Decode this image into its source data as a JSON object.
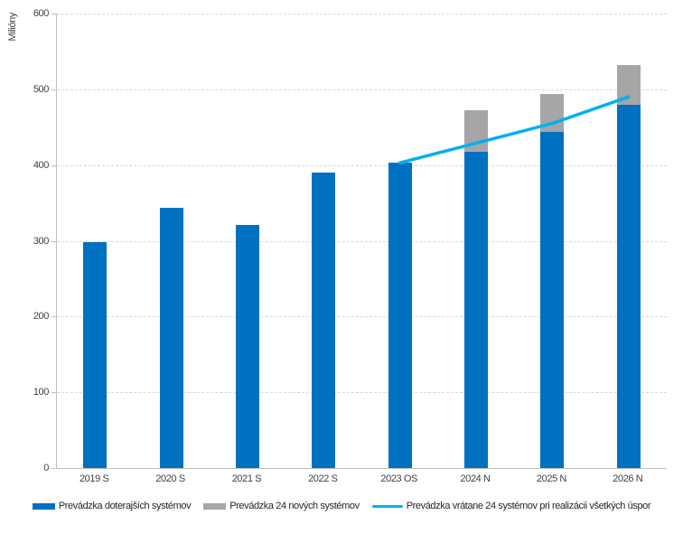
{
  "chart_data": {
    "type": "bar",
    "subtype": "stacked-bars-with-line",
    "title": "",
    "xlabel": "",
    "ylabel": "Milióny",
    "ylim": [
      0,
      600
    ],
    "ytick_step": 100,
    "yticks": [
      0,
      100,
      200,
      300,
      400,
      500,
      600
    ],
    "grid": "horizontal-dashed",
    "legend_position": "bottom",
    "categories": [
      "2019 S",
      "2020 S",
      "2021 S",
      "2022 S",
      "2023 OS",
      "2024 N",
      "2025 N",
      "2026 N"
    ],
    "series": [
      {
        "name": "Prevádzka doterajších systémov",
        "type": "bar",
        "stack": true,
        "values": [
          298,
          344,
          321,
          390,
          403,
          417,
          444,
          480
        ]
      },
      {
        "name": "Prevádzka 24 nových systémov",
        "type": "bar",
        "stack": true,
        "values": [
          0,
          0,
          0,
          0,
          0,
          55,
          50,
          52
        ]
      },
      {
        "name": "Prevádzka vrátane 24 systémov pri realizácii všetkých úspor",
        "type": "line",
        "values": [
          null,
          null,
          null,
          null,
          403,
          429,
          455,
          490
        ]
      }
    ],
    "stacked_totals": [
      298,
      344,
      321,
      390,
      403,
      472,
      494,
      532
    ],
    "colors": {
      "bar_primary": "#0070C0",
      "bar_secondary": "#A6A6A6",
      "line": "#00B0F0",
      "grid": "#D9D9D9",
      "axis": "#BFBFBF",
      "text": "#404040"
    }
  }
}
